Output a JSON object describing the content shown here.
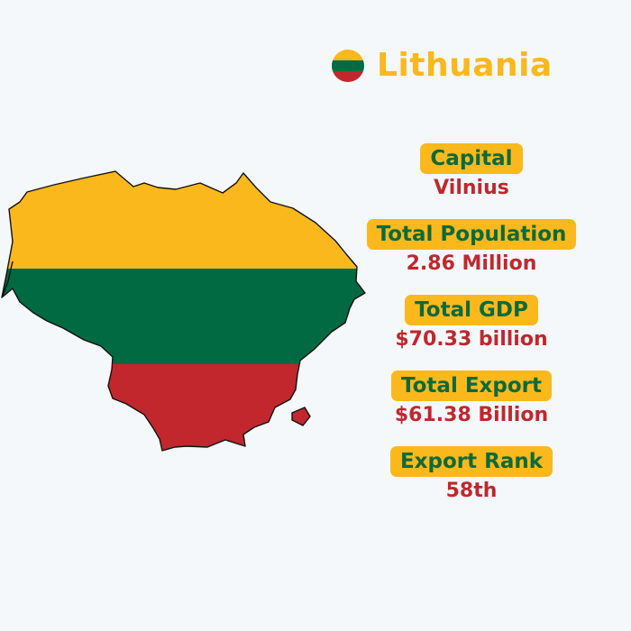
{
  "header": {
    "country": "Lithuania",
    "flag_icon": "lithuania-flag-icon"
  },
  "colors": {
    "yellow": "#fbb81c",
    "green": "#016a43",
    "red": "#c1272d",
    "label_text": "#0c6a3a",
    "value_text": "#c1272d",
    "background": "#f5f8fb"
  },
  "map": {
    "icon": "lithuania-map-flag-icon"
  },
  "stats": [
    {
      "label": "Capital",
      "value": "Vilnius"
    },
    {
      "label": "Total Population",
      "value": "2.86 Million"
    },
    {
      "label": "Total GDP",
      "value": "$70.33 billion"
    },
    {
      "label": "Total Export",
      "value": "$61.38 Billion"
    },
    {
      "label": "Export Rank",
      "value": "58th"
    }
  ]
}
